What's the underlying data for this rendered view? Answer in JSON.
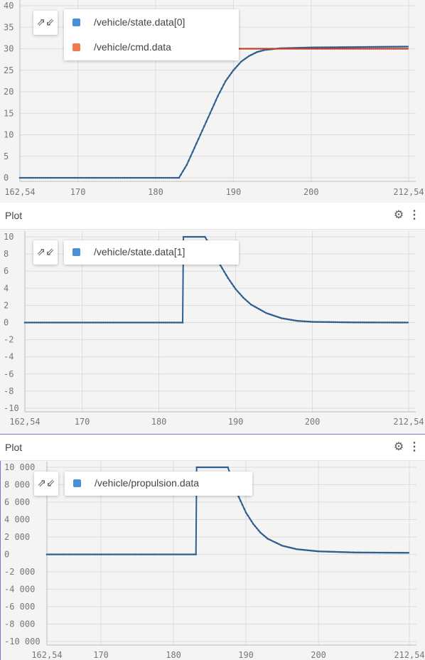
{
  "panels": [
    {
      "title": "",
      "collapse_icon": "collapse-arrows-icon",
      "legend": [
        {
          "name": "/vehicle/state.data[0]",
          "color": "#4a90d9"
        },
        {
          "name": "/vehicle/cmd.data",
          "color": "#f07b4f"
        }
      ]
    },
    {
      "title": "Plot",
      "collapse_icon": "collapse-arrows-icon",
      "gear_icon": "gear-icon",
      "menu_icon": "more-vertical-icon",
      "legend": [
        {
          "name": "/vehicle/state.data[1]",
          "color": "#4a90d9"
        }
      ]
    },
    {
      "title": "Plot",
      "collapse_icon": "collapse-arrows-icon",
      "gear_icon": "gear-icon",
      "menu_icon": "more-vertical-icon",
      "legend": [
        {
          "name": "/vehicle/propulsion.data",
          "color": "#4a90d9"
        }
      ]
    }
  ],
  "chart_data": [
    {
      "type": "line",
      "xlim": [
        162.54,
        212.54
      ],
      "ylim": [
        0,
        40
      ],
      "x_ticks": [
        "162,54",
        "170",
        "180",
        "190",
        "200",
        "212,54"
      ],
      "x_tick_values": [
        162.54,
        170,
        180,
        190,
        200,
        212.54
      ],
      "y_ticks": [
        "0",
        "5",
        "10",
        "15",
        "20",
        "25",
        "30",
        "35",
        "40"
      ],
      "y_tick_values": [
        0,
        5,
        10,
        15,
        20,
        25,
        30,
        35,
        40
      ],
      "series": [
        {
          "name": "/vehicle/state.data[0]",
          "color": "#2f5e8f",
          "points": [
            [
              162.54,
              0
            ],
            [
              183,
              0
            ],
            [
              184,
              3
            ],
            [
              185,
              7
            ],
            [
              186,
              11
            ],
            [
              187,
              15
            ],
            [
              188,
              19
            ],
            [
              189,
              22.5
            ],
            [
              190,
              25
            ],
            [
              191,
              27
            ],
            [
              192,
              28.3
            ],
            [
              193,
              29.2
            ],
            [
              194,
              29.7
            ],
            [
              196,
              30.1
            ],
            [
              200,
              30.3
            ],
            [
              212.54,
              30.5
            ]
          ]
        },
        {
          "name": "/vehicle/cmd.data",
          "color": "#c2412a",
          "points": [
            [
              190.5,
              30
            ],
            [
              212.54,
              30
            ]
          ]
        }
      ]
    },
    {
      "type": "line",
      "xlim": [
        162.54,
        212.54
      ],
      "ylim": [
        -10,
        10
      ],
      "x_ticks": [
        "162,54",
        "170",
        "180",
        "190",
        "200",
        "212,54"
      ],
      "x_tick_values": [
        162.54,
        170,
        180,
        190,
        200,
        212.54
      ],
      "y_ticks": [
        "10",
        "8",
        "6",
        "4",
        "2",
        "0",
        "-2",
        "-4",
        "-6",
        "-8",
        "-10"
      ],
      "y_tick_values": [
        10,
        8,
        6,
        4,
        2,
        0,
        -2,
        -4,
        -6,
        -8,
        -10
      ],
      "series": [
        {
          "name": "/vehicle/state.data[1]",
          "color": "#2f5e8f",
          "points": [
            [
              162.54,
              0
            ],
            [
              183.1,
              0
            ],
            [
              183.2,
              10
            ],
            [
              186,
              10
            ],
            [
              187,
              8.5
            ],
            [
              188,
              6.7
            ],
            [
              189,
              5.2
            ],
            [
              190,
              3.9
            ],
            [
              191,
              2.9
            ],
            [
              192,
              2.1
            ],
            [
              194,
              1.1
            ],
            [
              196,
              0.5
            ],
            [
              198,
              0.2
            ],
            [
              200,
              0.08
            ],
            [
              205,
              0.02
            ],
            [
              212.54,
              0
            ]
          ]
        }
      ]
    },
    {
      "type": "line",
      "xlim": [
        162.54,
        212.54
      ],
      "ylim": [
        -10000,
        10000
      ],
      "x_ticks": [
        "162,54",
        "170",
        "180",
        "190",
        "200",
        "212,54"
      ],
      "x_tick_values": [
        162.54,
        170,
        180,
        190,
        200,
        212.54
      ],
      "y_ticks": [
        "10 000",
        "8 000",
        "6 000",
        "4 000",
        "2 000",
        "0",
        "-2 000",
        "-4 000",
        "-6 000",
        "-8 000",
        "-10 000"
      ],
      "y_tick_values": [
        10000,
        8000,
        6000,
        4000,
        2000,
        0,
        -2000,
        -4000,
        -6000,
        -8000,
        -10000
      ],
      "series": [
        {
          "name": "/vehicle/propulsion.data",
          "color": "#2f5e8f",
          "points": [
            [
              162.54,
              0
            ],
            [
              183.1,
              0
            ],
            [
              183.2,
              10000
            ],
            [
              187.5,
              10000
            ],
            [
              188,
              8800
            ],
            [
              189,
              6600
            ],
            [
              190,
              4800
            ],
            [
              191,
              3500
            ],
            [
              192,
              2500
            ],
            [
              193,
              1800
            ],
            [
              195,
              1000
            ],
            [
              197,
              600
            ],
            [
              200,
              350
            ],
            [
              205,
              220
            ],
            [
              212.54,
              180
            ]
          ]
        }
      ]
    }
  ]
}
